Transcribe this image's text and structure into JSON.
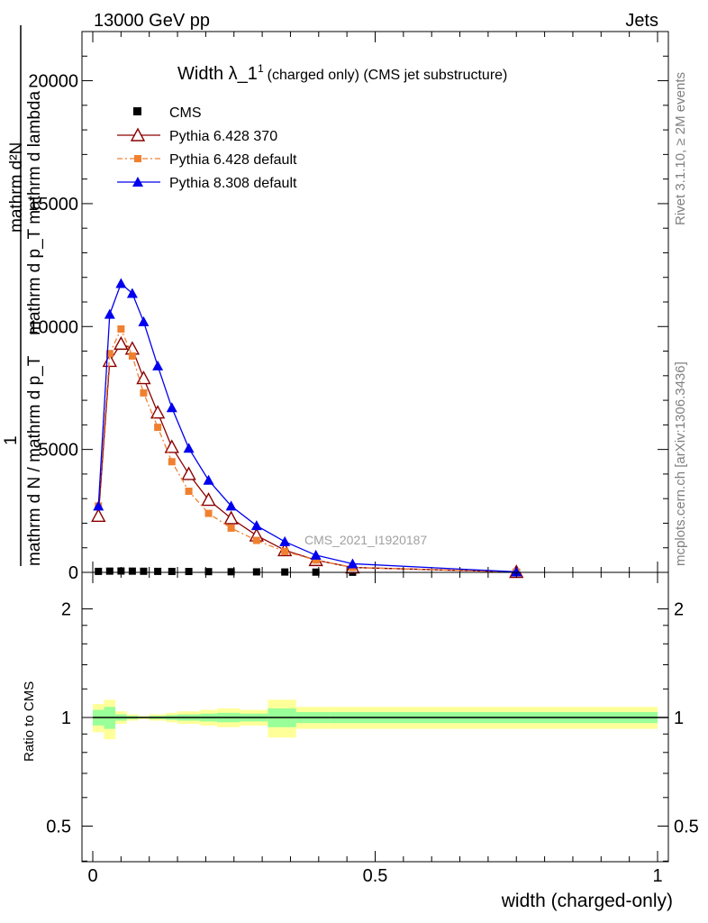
{
  "header": {
    "left": "13000 GeV pp",
    "right": "Jets"
  },
  "side": {
    "rivet": "Rivet 3.1.10, ≥ 2M events",
    "mcplots": "mcplots.cern.ch [arXiv:1306.3436]"
  },
  "plot_title": {
    "main": "Width λ_1",
    "sup": "1",
    "sub": "(charged only) (CMS jet substructure)"
  },
  "watermark": "CMS_2021_I1920187",
  "colors": {
    "cms": "#000000",
    "p6_370": "#8b0000",
    "p6_default": "#f08030",
    "p8": "#0000ee",
    "band_yellow": "#ffff99",
    "band_green": "#99ff99"
  },
  "chart_data": [
    {
      "type": "line",
      "id": "main",
      "ylabel_top": "mathrm d²N",
      "ylabel_mid": "mathrm d p_T mathrm d lambda",
      "ylabel_one": "1",
      "ylabel_bot": "mathrm d N / mathrm d p_T",
      "xlim": [
        0,
        1
      ],
      "ylim": [
        0,
        22000
      ],
      "yticks": [
        0,
        5000,
        10000,
        15000,
        20000
      ],
      "ytick_labels": [
        "0",
        "5000",
        "10000",
        "15000",
        "20000"
      ],
      "legend_position": "top-left",
      "series": [
        {
          "name": "CMS",
          "key": "cms",
          "marker": "square",
          "x": [
            0.01,
            0.03,
            0.05,
            0.07,
            0.09,
            0.115,
            0.14,
            0.17,
            0.205,
            0.245,
            0.29,
            0.34,
            0.395,
            0.46,
            0.75
          ],
          "values": [
            40,
            50,
            55,
            50,
            45,
            40,
            38,
            35,
            30,
            25,
            20,
            15,
            10,
            5,
            2
          ]
        },
        {
          "name": "Pythia 6.428 370",
          "key": "p6_370",
          "marker": "triangle-open",
          "x": [
            0.01,
            0.03,
            0.05,
            0.07,
            0.09,
            0.115,
            0.14,
            0.17,
            0.205,
            0.245,
            0.29,
            0.34,
            0.395,
            0.46,
            0.75
          ],
          "values": [
            2300,
            8600,
            9300,
            9100,
            7900,
            6500,
            5100,
            4000,
            2950,
            2200,
            1500,
            900,
            500,
            200,
            15
          ]
        },
        {
          "name": "Pythia 6.428 default",
          "key": "p6_default",
          "marker": "square",
          "x": [
            0.01,
            0.03,
            0.05,
            0.07,
            0.09,
            0.115,
            0.14,
            0.17,
            0.205,
            0.245,
            0.29,
            0.34,
            0.395,
            0.46,
            0.75
          ],
          "values": [
            2700,
            8900,
            9900,
            8800,
            7300,
            5900,
            4500,
            3300,
            2400,
            1800,
            1300,
            850,
            500,
            200,
            15
          ]
        },
        {
          "name": "Pythia 8.308 default",
          "key": "p8",
          "marker": "triangle",
          "x": [
            0.01,
            0.03,
            0.05,
            0.07,
            0.09,
            0.115,
            0.14,
            0.17,
            0.205,
            0.245,
            0.29,
            0.34,
            0.395,
            0.46,
            0.75
          ],
          "values": [
            2700,
            10500,
            11750,
            11350,
            10200,
            8400,
            6700,
            5050,
            3750,
            2700,
            1900,
            1250,
            700,
            350,
            20
          ]
        }
      ]
    },
    {
      "type": "area",
      "id": "ratio",
      "ylabel": "Ratio to CMS",
      "xlabel": "width (charged-only)",
      "xlim": [
        0,
        1
      ],
      "ylim": [
        0.35,
        2.3
      ],
      "yticks": [
        0.5,
        1,
        2
      ],
      "ytick_labels": [
        "0.5",
        "1",
        "2"
      ],
      "xticks": [
        0,
        0.5,
        1
      ],
      "xtick_labels": [
        "0",
        "0.5",
        "1"
      ],
      "reference": 1,
      "bin_edges": [
        0,
        0.02,
        0.04,
        0.06,
        0.08,
        0.1,
        0.13,
        0.15,
        0.19,
        0.22,
        0.26,
        0.31,
        0.36,
        0.42,
        1.0
      ],
      "yellow_band": {
        "lo": [
          0.91,
          0.87,
          0.96,
          0.98,
          0.99,
          0.98,
          0.97,
          0.96,
          0.95,
          0.94,
          0.95,
          0.88,
          0.93,
          0.93
        ],
        "hi": [
          1.09,
          1.12,
          1.04,
          1.02,
          1.01,
          1.02,
          1.03,
          1.04,
          1.05,
          1.06,
          1.05,
          1.12,
          1.07,
          1.07
        ]
      },
      "green_band": {
        "lo": [
          0.95,
          0.93,
          0.98,
          0.99,
          0.995,
          0.99,
          0.985,
          0.98,
          0.975,
          0.97,
          0.975,
          0.94,
          0.965,
          0.965
        ],
        "hi": [
          1.05,
          1.07,
          1.02,
          1.01,
          1.005,
          1.01,
          1.015,
          1.02,
          1.025,
          1.03,
          1.025,
          1.06,
          1.035,
          1.035
        ]
      }
    }
  ]
}
